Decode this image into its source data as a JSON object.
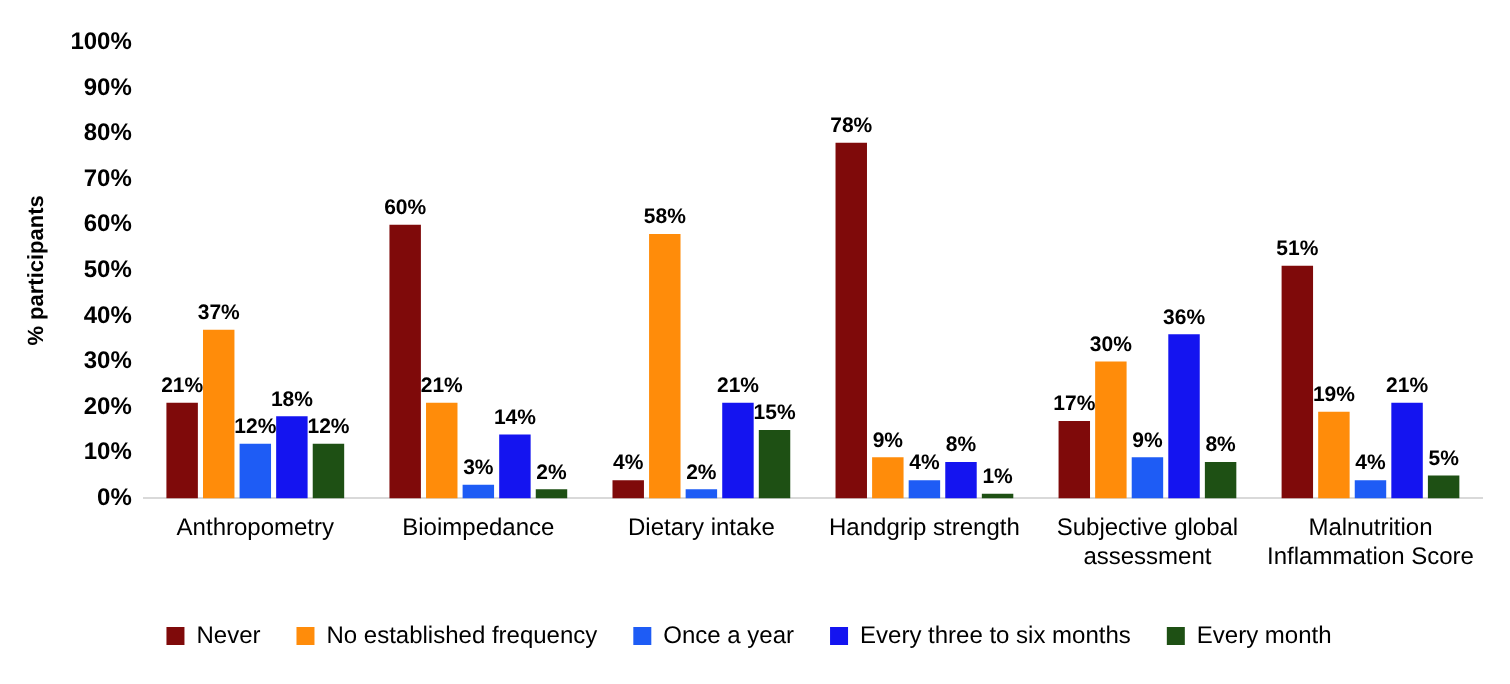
{
  "chart_data": {
    "type": "bar",
    "ylabel": "% participants",
    "categories": [
      "Anthropometry",
      "Bioimpedance",
      "Dietary intake",
      "Handgrip strength",
      "Subjective global assessment",
      "Malnutrition Inflammation Score"
    ],
    "series": [
      {
        "name": "Never",
        "color": "#7f0a0a",
        "values": [
          21,
          60,
          4,
          78,
          17,
          51
        ],
        "value_labels": [
          "21%",
          "60%",
          "4%",
          "78%",
          "17%",
          "51%"
        ]
      },
      {
        "name": "No established frequency",
        "color": "#ff8c0a",
        "values": [
          37,
          21,
          58,
          9,
          30,
          19
        ],
        "value_labels": [
          "37%",
          "21%",
          "58%",
          "9%",
          "30%",
          "19%"
        ]
      },
      {
        "name": "Once a year",
        "color": "#1e5cf5",
        "values": [
          12,
          3,
          2,
          4,
          9,
          4
        ],
        "value_labels": [
          "12%",
          "3%",
          "2%",
          "4%",
          "9%",
          "4%"
        ]
      },
      {
        "name": "Every three to six months",
        "color": "#1414f0",
        "values": [
          18,
          14,
          21,
          8,
          36,
          21
        ],
        "value_labels": [
          "18%",
          "14%",
          "21%",
          "8%",
          "36%",
          "21%"
        ]
      },
      {
        "name": "Every month",
        "color": "#1e5014",
        "values": [
          12,
          2,
          15,
          1,
          8,
          5
        ],
        "value_labels": [
          "12%",
          "2%",
          "15%",
          "1%",
          "8%",
          "5%"
        ]
      }
    ],
    "ylim": [
      0,
      100
    ],
    "yticks": [
      {
        "value": 0,
        "label": "0%"
      },
      {
        "value": 10,
        "label": "10%"
      },
      {
        "value": 20,
        "label": "20%"
      },
      {
        "value": 30,
        "label": "30%"
      },
      {
        "value": 40,
        "label": "40%"
      },
      {
        "value": 50,
        "label": "50%"
      },
      {
        "value": 60,
        "label": "60%"
      },
      {
        "value": 70,
        "label": "70%"
      },
      {
        "value": 80,
        "label": "80%"
      },
      {
        "value": 90,
        "label": "90%"
      },
      {
        "value": 100,
        "label": "100%"
      }
    ],
    "grid": false,
    "legend": "bottom"
  }
}
